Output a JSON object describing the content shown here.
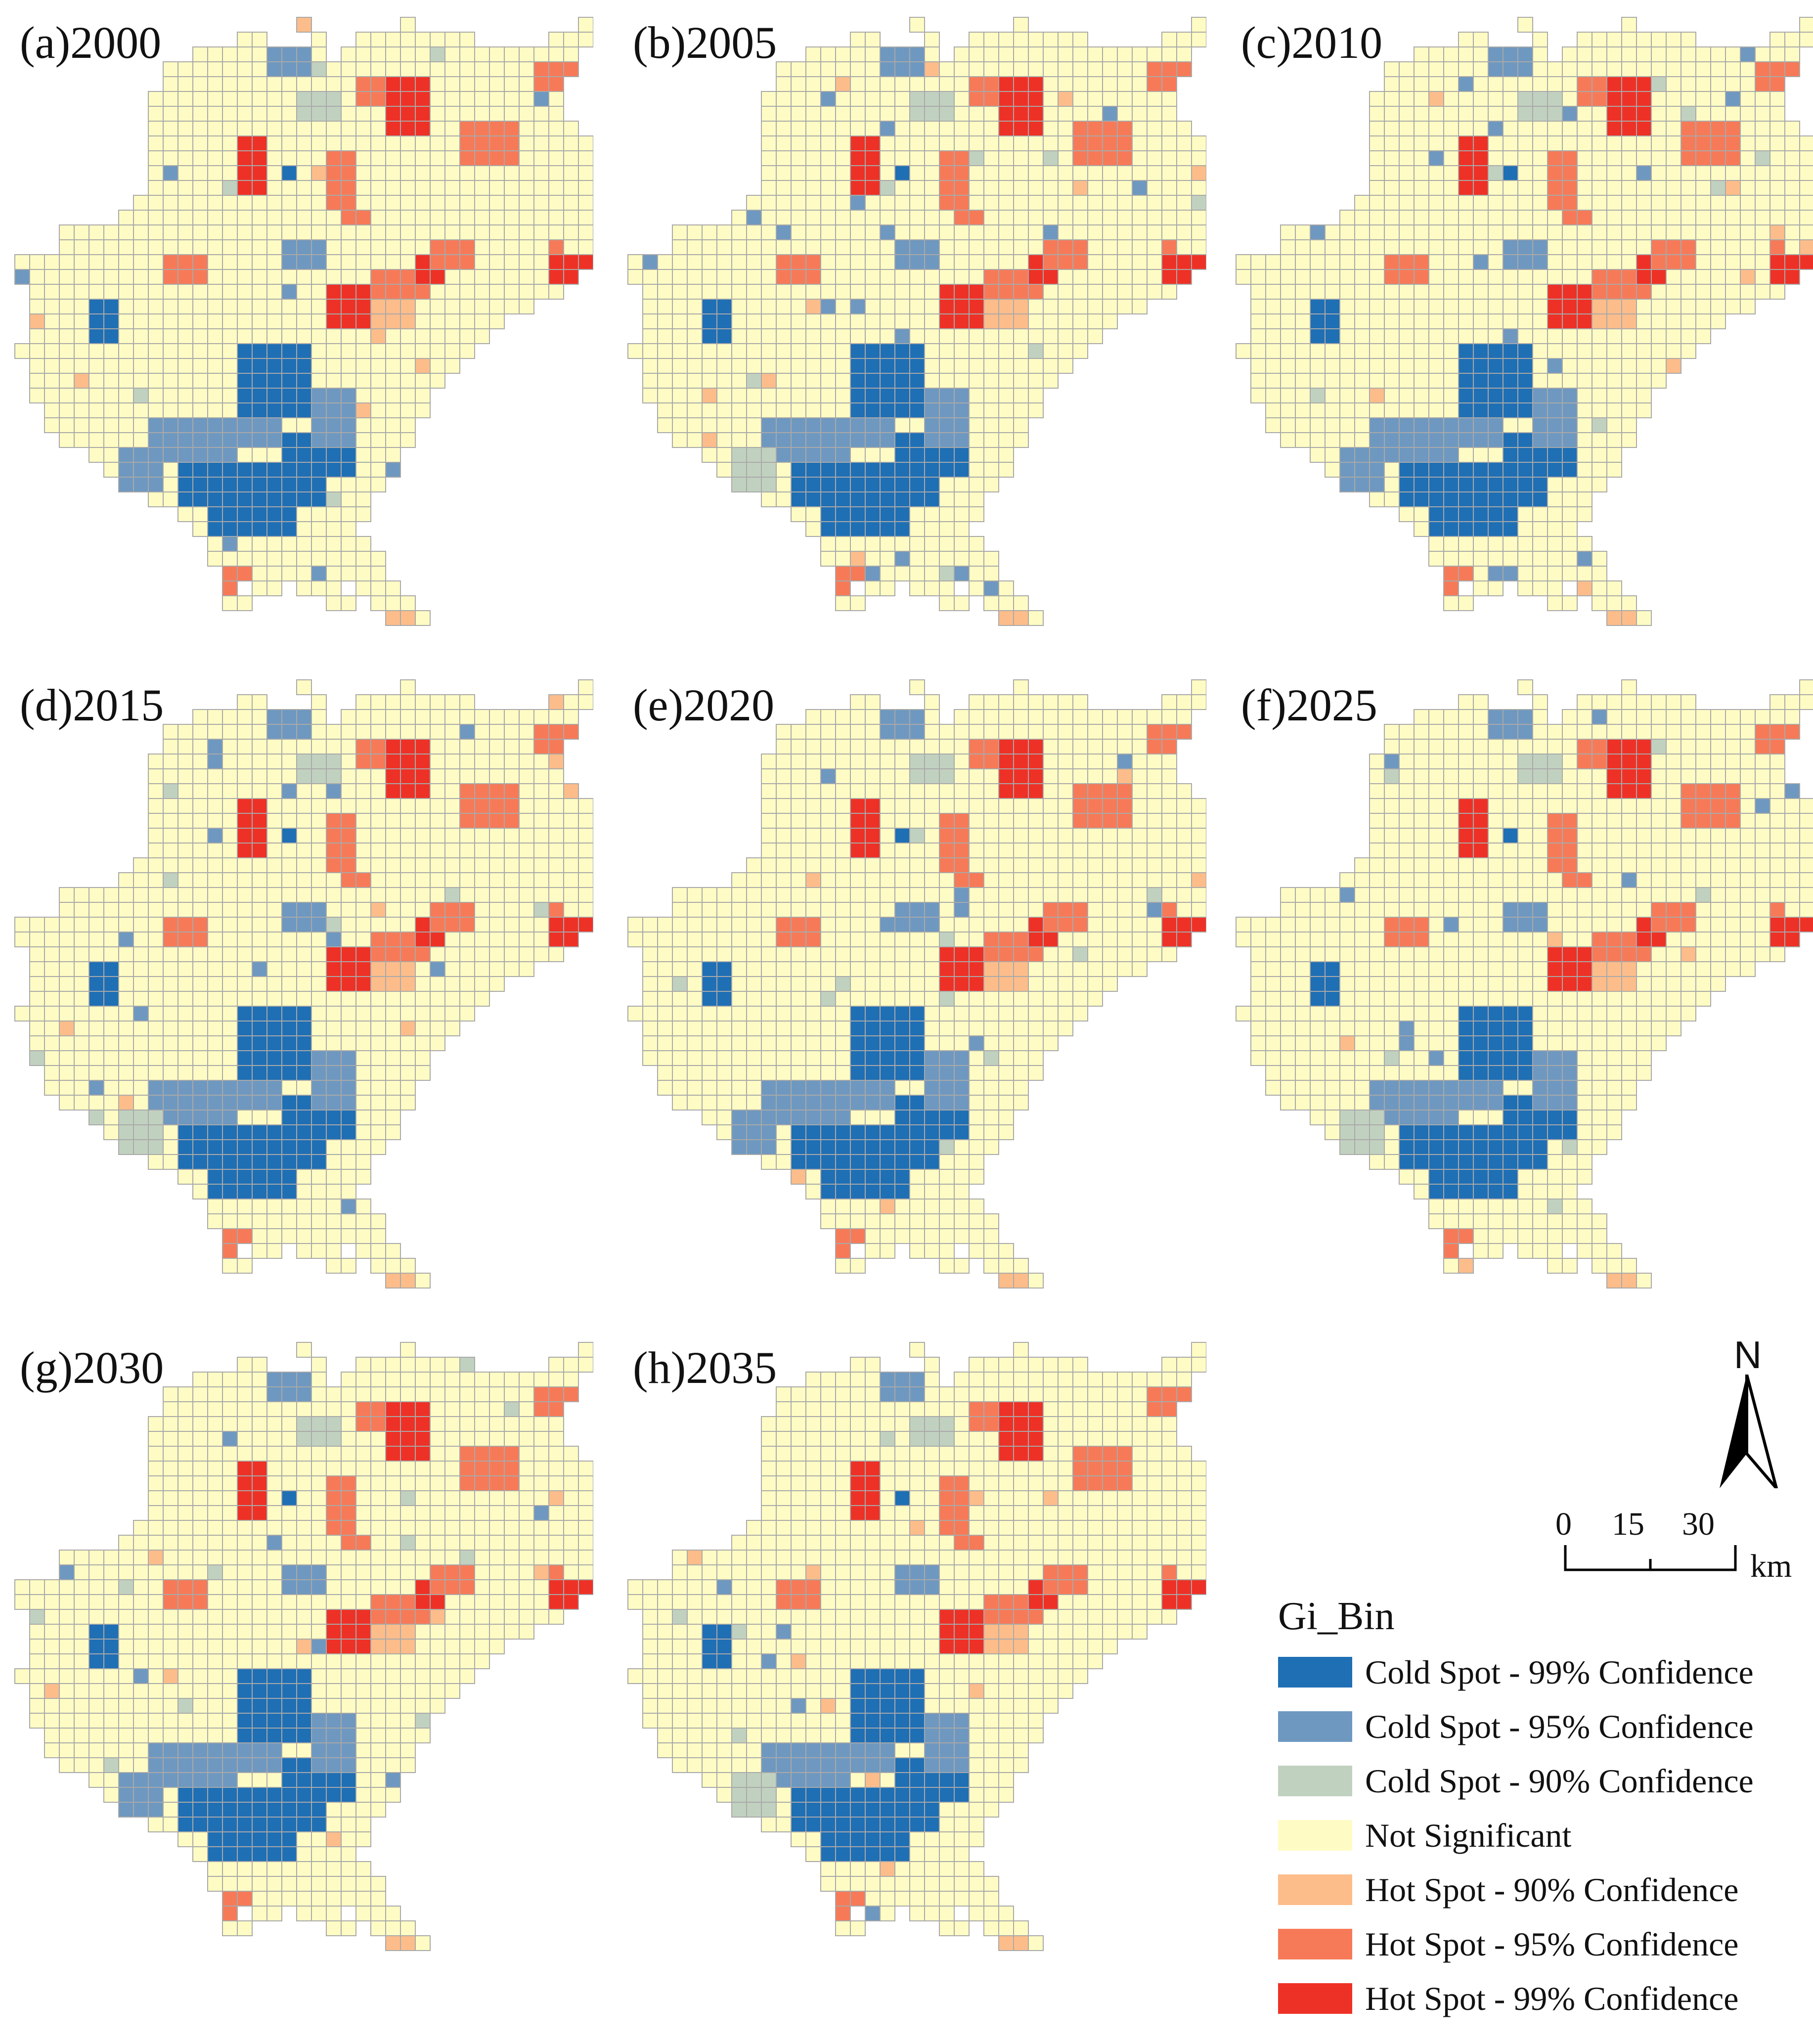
{
  "panels": [
    {
      "label": "(a)2000"
    },
    {
      "label": "(b)2005"
    },
    {
      "label": "(c)2010"
    },
    {
      "label": "(d)2015"
    },
    {
      "label": "(e)2020"
    },
    {
      "label": "(f)2025"
    },
    {
      "label": "(g)2030"
    },
    {
      "label": "(h)2035"
    }
  ],
  "legend": {
    "title": "Gi_Bin",
    "items": [
      {
        "label": "Cold Spot - 99% Confidence",
        "color": "#1f6fb4"
      },
      {
        "label": "Cold Spot - 95% Confidence",
        "color": "#6e98c0"
      },
      {
        "label": "Cold Spot - 90% Confidence",
        "color": "#c1d1c0"
      },
      {
        "label": "Not Significant",
        "color": "#fefcc4"
      },
      {
        "label": "Hot Spot - 90% Confidence",
        "color": "#fdbd8a"
      },
      {
        "label": "Hot Spot - 95% Confidence",
        "color": "#f77a58"
      },
      {
        "label": "Hot Spot - 99% Confidence",
        "color": "#ee3126"
      }
    ]
  },
  "north_arrow": {
    "letter": "N"
  },
  "scale_bar": {
    "ticks": [
      "0",
      "15",
      "30"
    ],
    "unit": "km"
  }
}
